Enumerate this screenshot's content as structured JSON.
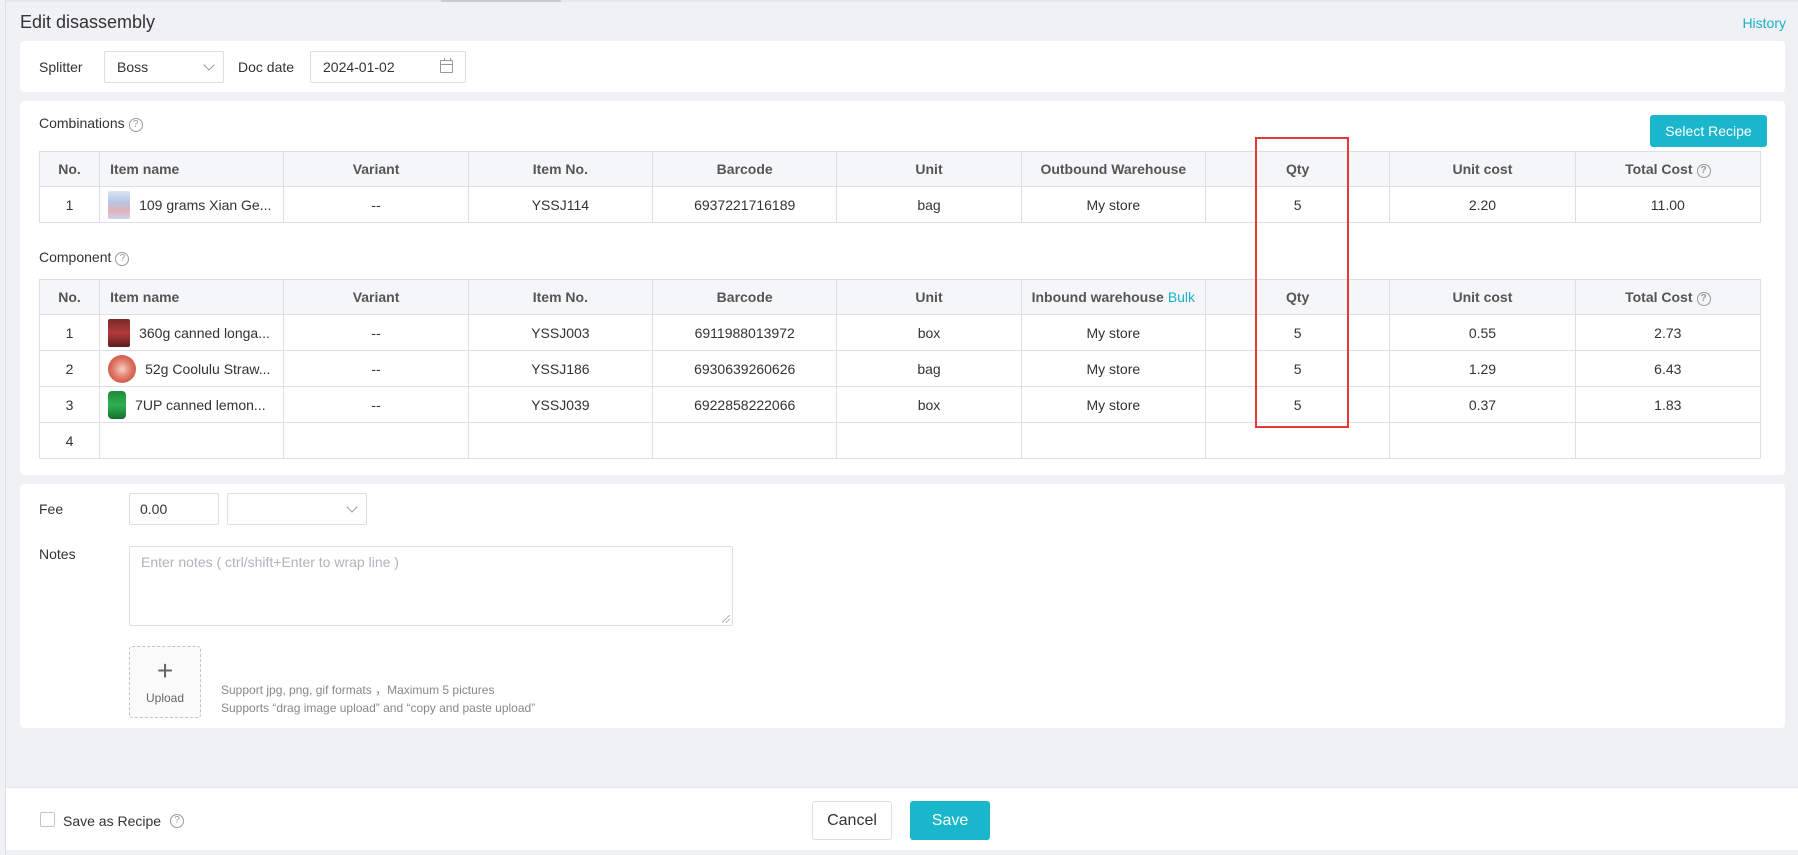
{
  "header": {
    "title": "Edit disassembly",
    "history_link": "History"
  },
  "form": {
    "splitter_label": "Splitter",
    "splitter_value": "Boss",
    "doc_date_label": "Doc date",
    "doc_date_value": "2024-01-02"
  },
  "combinations": {
    "label": "Combinations",
    "select_recipe_button": "Select Recipe",
    "columns": [
      "No.",
      "Item name",
      "Variant",
      "Item No.",
      "Barcode",
      "Unit",
      "Outbound Warehouse",
      "Qty",
      "Unit cost",
      "Total Cost"
    ],
    "rows": [
      {
        "no": "1",
        "item_name": "109 grams Xian Ge...",
        "variant": "--",
        "item_no": "YSSJ114",
        "barcode": "6937221716189",
        "unit": "bag",
        "warehouse": "My store",
        "qty": "5",
        "unit_cost": "2.20",
        "total_cost": "11.00"
      }
    ]
  },
  "component": {
    "label": "Component",
    "columns": [
      "No.",
      "Item name",
      "Variant",
      "Item No.",
      "Barcode",
      "Unit",
      "Inbound warehouse",
      "Qty",
      "Unit cost",
      "Total Cost"
    ],
    "bulk_link": "Bulk",
    "rows": [
      {
        "no": "1",
        "item_name": "360g canned longa...",
        "variant": "--",
        "item_no": "YSSJ003",
        "barcode": "6911988013972",
        "unit": "box",
        "warehouse": "My store",
        "qty": "5",
        "unit_cost": "0.55",
        "total_cost": "2.73"
      },
      {
        "no": "2",
        "item_name": "52g Coolulu Straw...",
        "variant": "--",
        "item_no": "YSSJ186",
        "barcode": "6930639260626",
        "unit": "bag",
        "warehouse": "My store",
        "qty": "5",
        "unit_cost": "1.29",
        "total_cost": "6.43"
      },
      {
        "no": "3",
        "item_name": "7UP canned lemon...",
        "variant": "--",
        "item_no": "YSSJ039",
        "barcode": "6922858222066",
        "unit": "box",
        "warehouse": "My store",
        "qty": "5",
        "unit_cost": "0.37",
        "total_cost": "1.83"
      },
      {
        "no": "4"
      }
    ]
  },
  "fee": {
    "label": "Fee",
    "value": "0.00",
    "type_value": ""
  },
  "notes": {
    "label": "Notes",
    "placeholder": "Enter notes ( ctrl/shift+Enter to wrap line )",
    "upload_label": "Upload",
    "hint_line1": "Support jpg, png, gif formats ，Maximum 5 pictures",
    "hint_line2": "Supports “drag image upload” and “copy and paste upload”"
  },
  "footer": {
    "save_as_recipe": "Save as Recipe",
    "cancel_button": "Cancel",
    "save_button": "Save"
  },
  "colors": {
    "accent": "#19b6cc",
    "highlight": "#e53935"
  }
}
